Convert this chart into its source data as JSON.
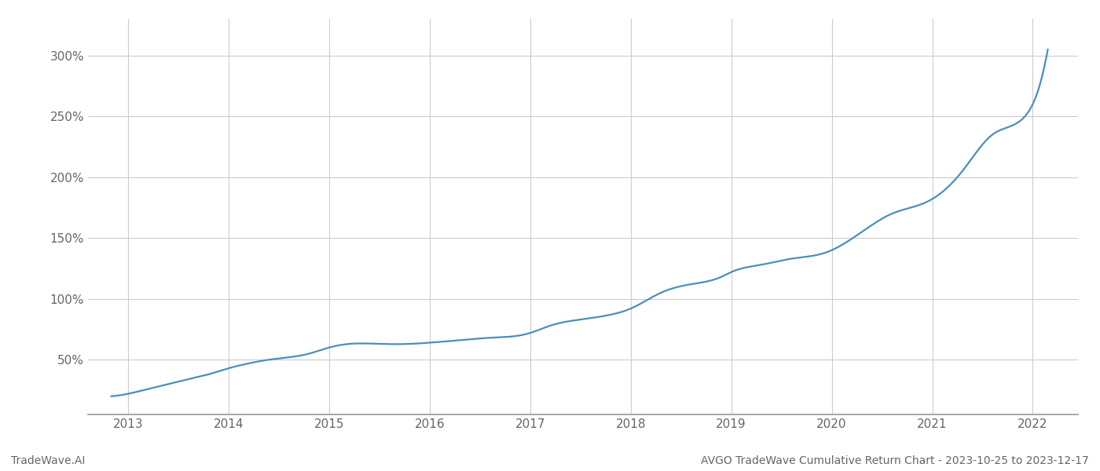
{
  "title": "AVGO TradeWave Cumulative Return Chart - 2023-10-25 to 2023-12-17",
  "watermark": "TradeWave.AI",
  "line_color": "#4a90b8",
  "background_color": "#ffffff",
  "grid_color": "#cccccc",
  "x_years": [
    2013,
    2014,
    2015,
    2016,
    2017,
    2018,
    2019,
    2020,
    2021,
    2022
  ],
  "y_ticks": [
    50,
    100,
    150,
    200,
    250,
    300
  ],
  "xlim": [
    2012.6,
    2022.45
  ],
  "ylim": [
    5,
    330
  ],
  "x_data": [
    2012.83,
    2013.0,
    2013.2,
    2013.4,
    2013.6,
    2013.8,
    2014.0,
    2014.2,
    2014.4,
    2014.6,
    2014.8,
    2015.0,
    2015.2,
    2015.5,
    2015.8,
    2016.0,
    2016.3,
    2016.6,
    2016.9,
    2017.0,
    2017.2,
    2017.5,
    2017.8,
    2018.0,
    2018.3,
    2018.6,
    2018.9,
    2019.0,
    2019.3,
    2019.6,
    2019.9,
    2020.0,
    2020.3,
    2020.6,
    2020.9,
    2021.0,
    2021.3,
    2021.6,
    2021.9,
    2022.0,
    2022.15
  ],
  "y_data": [
    20,
    22,
    26,
    30,
    34,
    38,
    43,
    47,
    50,
    52,
    55,
    60,
    63,
    63,
    63,
    64,
    66,
    68,
    70,
    72,
    78,
    83,
    87,
    92,
    105,
    112,
    118,
    122,
    128,
    133,
    137,
    140,
    155,
    170,
    178,
    182,
    205,
    235,
    248,
    260,
    305
  ]
}
